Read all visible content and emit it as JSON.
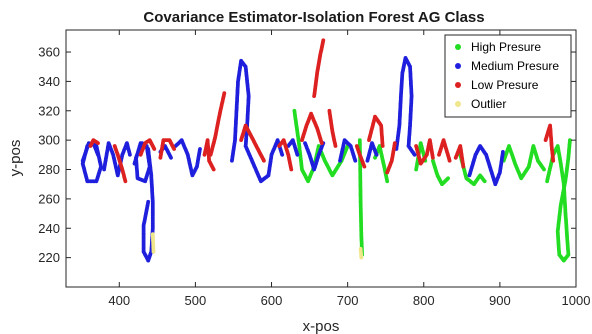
{
  "chart_data": {
    "type": "scatter",
    "title": "Covariance Estimator-Isolation Forest AG Class",
    "xlabel": "x-pos",
    "ylabel": "y-pos",
    "xlim": [
      330,
      1000
    ],
    "ylim": [
      200,
      375
    ],
    "xticks": [
      400,
      500,
      600,
      700,
      800,
      900,
      1000
    ],
    "yticks": [
      220,
      240,
      260,
      280,
      300,
      320,
      340,
      360
    ],
    "grid": false,
    "legend_position": "top-right",
    "series": [
      {
        "name": "High Presure",
        "color": "#22dd22",
        "strokes": [
          [
            [
              630,
              320
            ],
            [
              636,
              298
            ],
            [
              640,
              280
            ],
            [
              648,
              272
            ],
            [
              656,
              282
            ],
            [
              662,
              296
            ],
            [
              670,
              286
            ],
            [
              680,
              276
            ],
            [
              692,
              286
            ],
            [
              700,
              296
            ]
          ],
          [
            [
              716,
              300
            ],
            [
              717,
              260
            ],
            [
              718,
              235
            ],
            [
              719,
              222
            ]
          ],
          [
            [
              736,
              288
            ],
            [
              742,
              296
            ],
            [
              748,
              282
            ],
            [
              752,
              272
            ]
          ],
          [
            [
              790,
              280
            ],
            [
              796,
              298
            ],
            [
              802,
              286
            ]
          ],
          [
            [
              812,
              286
            ],
            [
              818,
              276
            ],
            [
              824,
              270
            ],
            [
              832,
              274
            ]
          ],
          [
            [
              848,
              290
            ],
            [
              856,
              274
            ],
            [
              866,
              270
            ],
            [
              874,
              276
            ],
            [
              880,
              272
            ]
          ],
          [
            [
              905,
              286
            ],
            [
              912,
              296
            ],
            [
              920,
              284
            ],
            [
              928,
              274
            ],
            [
              938,
              282
            ],
            [
              944,
              296
            ],
            [
              950,
              286
            ],
            [
              958,
              280
            ]
          ],
          [
            [
              962,
              272
            ],
            [
              970,
              290
            ],
            [
              976,
              296
            ],
            [
              980,
              284
            ],
            [
              984,
              270
            ],
            [
              986,
              252
            ],
            [
              988,
              236
            ],
            [
              990,
              222
            ],
            [
              984,
              218
            ],
            [
              978,
              222
            ],
            [
              976,
              238
            ],
            [
              980,
              256
            ],
            [
              986,
              272
            ],
            [
              990,
              288
            ],
            [
              992,
              300
            ]
          ]
        ]
      },
      {
        "name": "Medium Presure",
        "color": "#1f1fdd",
        "strokes": [
          [
            [
              352,
              286
            ],
            [
              360,
              298
            ],
            [
              370,
              296
            ],
            [
              376,
              282
            ],
            [
              370,
              272
            ],
            [
              358,
              272
            ],
            [
              352,
              284
            ],
            [
              358,
              296
            ],
            [
              366,
              298
            ],
            [
              372,
              290
            ]
          ],
          [
            [
              380,
              280
            ],
            [
              386,
              298
            ],
            [
              392,
              290
            ],
            [
              398,
              276
            ],
            [
              404,
              290
            ],
            [
              410,
              298
            ],
            [
              414,
              290
            ]
          ],
          [
            [
              420,
              284
            ],
            [
              428,
              298
            ],
            [
              436,
              296
            ],
            [
              440,
              282
            ],
            [
              434,
              272
            ],
            [
              424,
              274
            ],
            [
              422,
              288
            ],
            [
              430,
              298
            ],
            [
              438,
              294
            ],
            [
              442,
              276
            ],
            [
              444,
              258
            ],
            [
              444,
              240
            ],
            [
              442,
              224
            ],
            [
              438,
              218
            ],
            [
              432,
              224
            ],
            [
              432,
              242
            ],
            [
              438,
              258
            ]
          ],
          [
            [
              454,
              292
            ],
            [
              460,
              296
            ],
            [
              468,
              288
            ]
          ],
          [
            [
              474,
              296
            ],
            [
              482,
              300
            ],
            [
              490,
              290
            ],
            [
              496,
              276
            ],
            [
              502,
              282
            ],
            [
              506,
              294
            ]
          ],
          [
            [
              548,
              286
            ],
            [
              552,
              300
            ],
            [
              554,
              320
            ],
            [
              556,
              340
            ],
            [
              560,
              354
            ],
            [
              566,
              350
            ],
            [
              570,
              330
            ],
            [
              568,
              310
            ],
            [
              566,
              296
            ],
            [
              576,
              284
            ],
            [
              586,
              272
            ],
            [
              596,
              276
            ],
            [
              600,
              290
            ],
            [
              608,
              300
            ],
            [
              614,
              290
            ]
          ],
          [
            [
              622,
              296
            ],
            [
              628,
              300
            ],
            [
              634,
              290
            ]
          ],
          [
            [
              644,
              298
            ],
            [
              650,
              290
            ],
            [
              656,
              280
            ],
            [
              662,
              290
            ],
            [
              668,
              298
            ]
          ],
          [
            [
              690,
              286
            ],
            [
              696,
              300
            ],
            [
              704,
              296
            ],
            [
              710,
              286
            ]
          ],
          [
            [
              726,
              286
            ],
            [
              732,
              298
            ],
            [
              738,
              290
            ]
          ],
          [
            [
              764,
              294
            ],
            [
              768,
              310
            ],
            [
              770,
              330
            ],
            [
              772,
              346
            ],
            [
              776,
              356
            ],
            [
              782,
              350
            ],
            [
              784,
              330
            ],
            [
              782,
              310
            ],
            [
              780,
              296
            ],
            [
              788,
              290
            ]
          ],
          [
            [
              860,
              276
            ],
            [
              868,
              290
            ],
            [
              874,
              296
            ],
            [
              882,
              290
            ],
            [
              888,
              280
            ],
            [
              894,
              270
            ],
            [
              900,
              278
            ],
            [
              904,
              292
            ]
          ]
        ]
      },
      {
        "name": "Low Presure",
        "color": "#dd2020",
        "strokes": [
          [
            [
              362,
              296
            ],
            [
              366,
              300
            ],
            [
              372,
              298
            ]
          ],
          [
            [
              394,
              296
            ],
            [
              398,
              290
            ],
            [
              404,
              280
            ],
            [
              408,
              272
            ]
          ],
          [
            [
              428,
              290
            ],
            [
              434,
              298
            ],
            [
              440,
              300
            ],
            [
              446,
              294
            ]
          ],
          [
            [
              454,
              288
            ],
            [
              458,
              300
            ],
            [
              466,
              300
            ],
            [
              472,
              294
            ]
          ],
          [
            [
              512,
              290
            ],
            [
              516,
              300
            ],
            [
              518,
              286
            ],
            [
              524,
              280
            ]
          ],
          [
            [
              520,
              290
            ],
            [
              526,
              302
            ],
            [
              532,
              318
            ],
            [
              538,
              332
            ]
          ],
          [
            [
              560,
              300
            ],
            [
              566,
              310
            ],
            [
              576,
              300
            ],
            [
              584,
              292
            ],
            [
              590,
              286
            ]
          ],
          [
            [
              610,
              296
            ],
            [
              616,
              300
            ],
            [
              622,
              290
            ],
            [
              626,
              280
            ]
          ],
          [
            [
              640,
              300
            ],
            [
              646,
              310
            ],
            [
              652,
              318
            ],
            [
              660,
              308
            ],
            [
              666,
              298
            ]
          ],
          [
            [
              656,
              330
            ],
            [
              660,
              346
            ],
            [
              664,
              358
            ],
            [
              668,
              368
            ]
          ],
          [
            [
              676,
              320
            ],
            [
              680,
              306
            ],
            [
              684,
              296
            ]
          ],
          [
            [
              712,
              296
            ],
            [
              716,
              290
            ],
            [
              722,
              282
            ]
          ],
          [
            [
              728,
              300
            ],
            [
              736,
              316
            ],
            [
              744,
              310
            ],
            [
              746,
              296
            ]
          ],
          [
            [
              752,
              278
            ],
            [
              758,
              286
            ],
            [
              762,
              298
            ]
          ],
          [
            [
              790,
              296
            ],
            [
              796,
              284
            ],
            [
              804,
              290
            ],
            [
              808,
              300
            ],
            [
              812,
              288
            ]
          ],
          [
            [
              820,
              290
            ],
            [
              826,
              300
            ],
            [
              834,
              286
            ]
          ],
          [
            [
              842,
              288
            ],
            [
              848,
              296
            ],
            [
              852,
              282
            ]
          ],
          [
            [
              960,
              300
            ],
            [
              966,
              310
            ],
            [
              968,
              296
            ],
            [
              970,
              286
            ]
          ]
        ]
      },
      {
        "name": "Outlier",
        "color": "#f0e68c",
        "strokes": [
          [
            [
              444,
              236
            ],
            [
              445,
              224
            ]
          ],
          [
            [
              717,
              226
            ],
            [
              718,
              220
            ]
          ]
        ]
      }
    ]
  }
}
